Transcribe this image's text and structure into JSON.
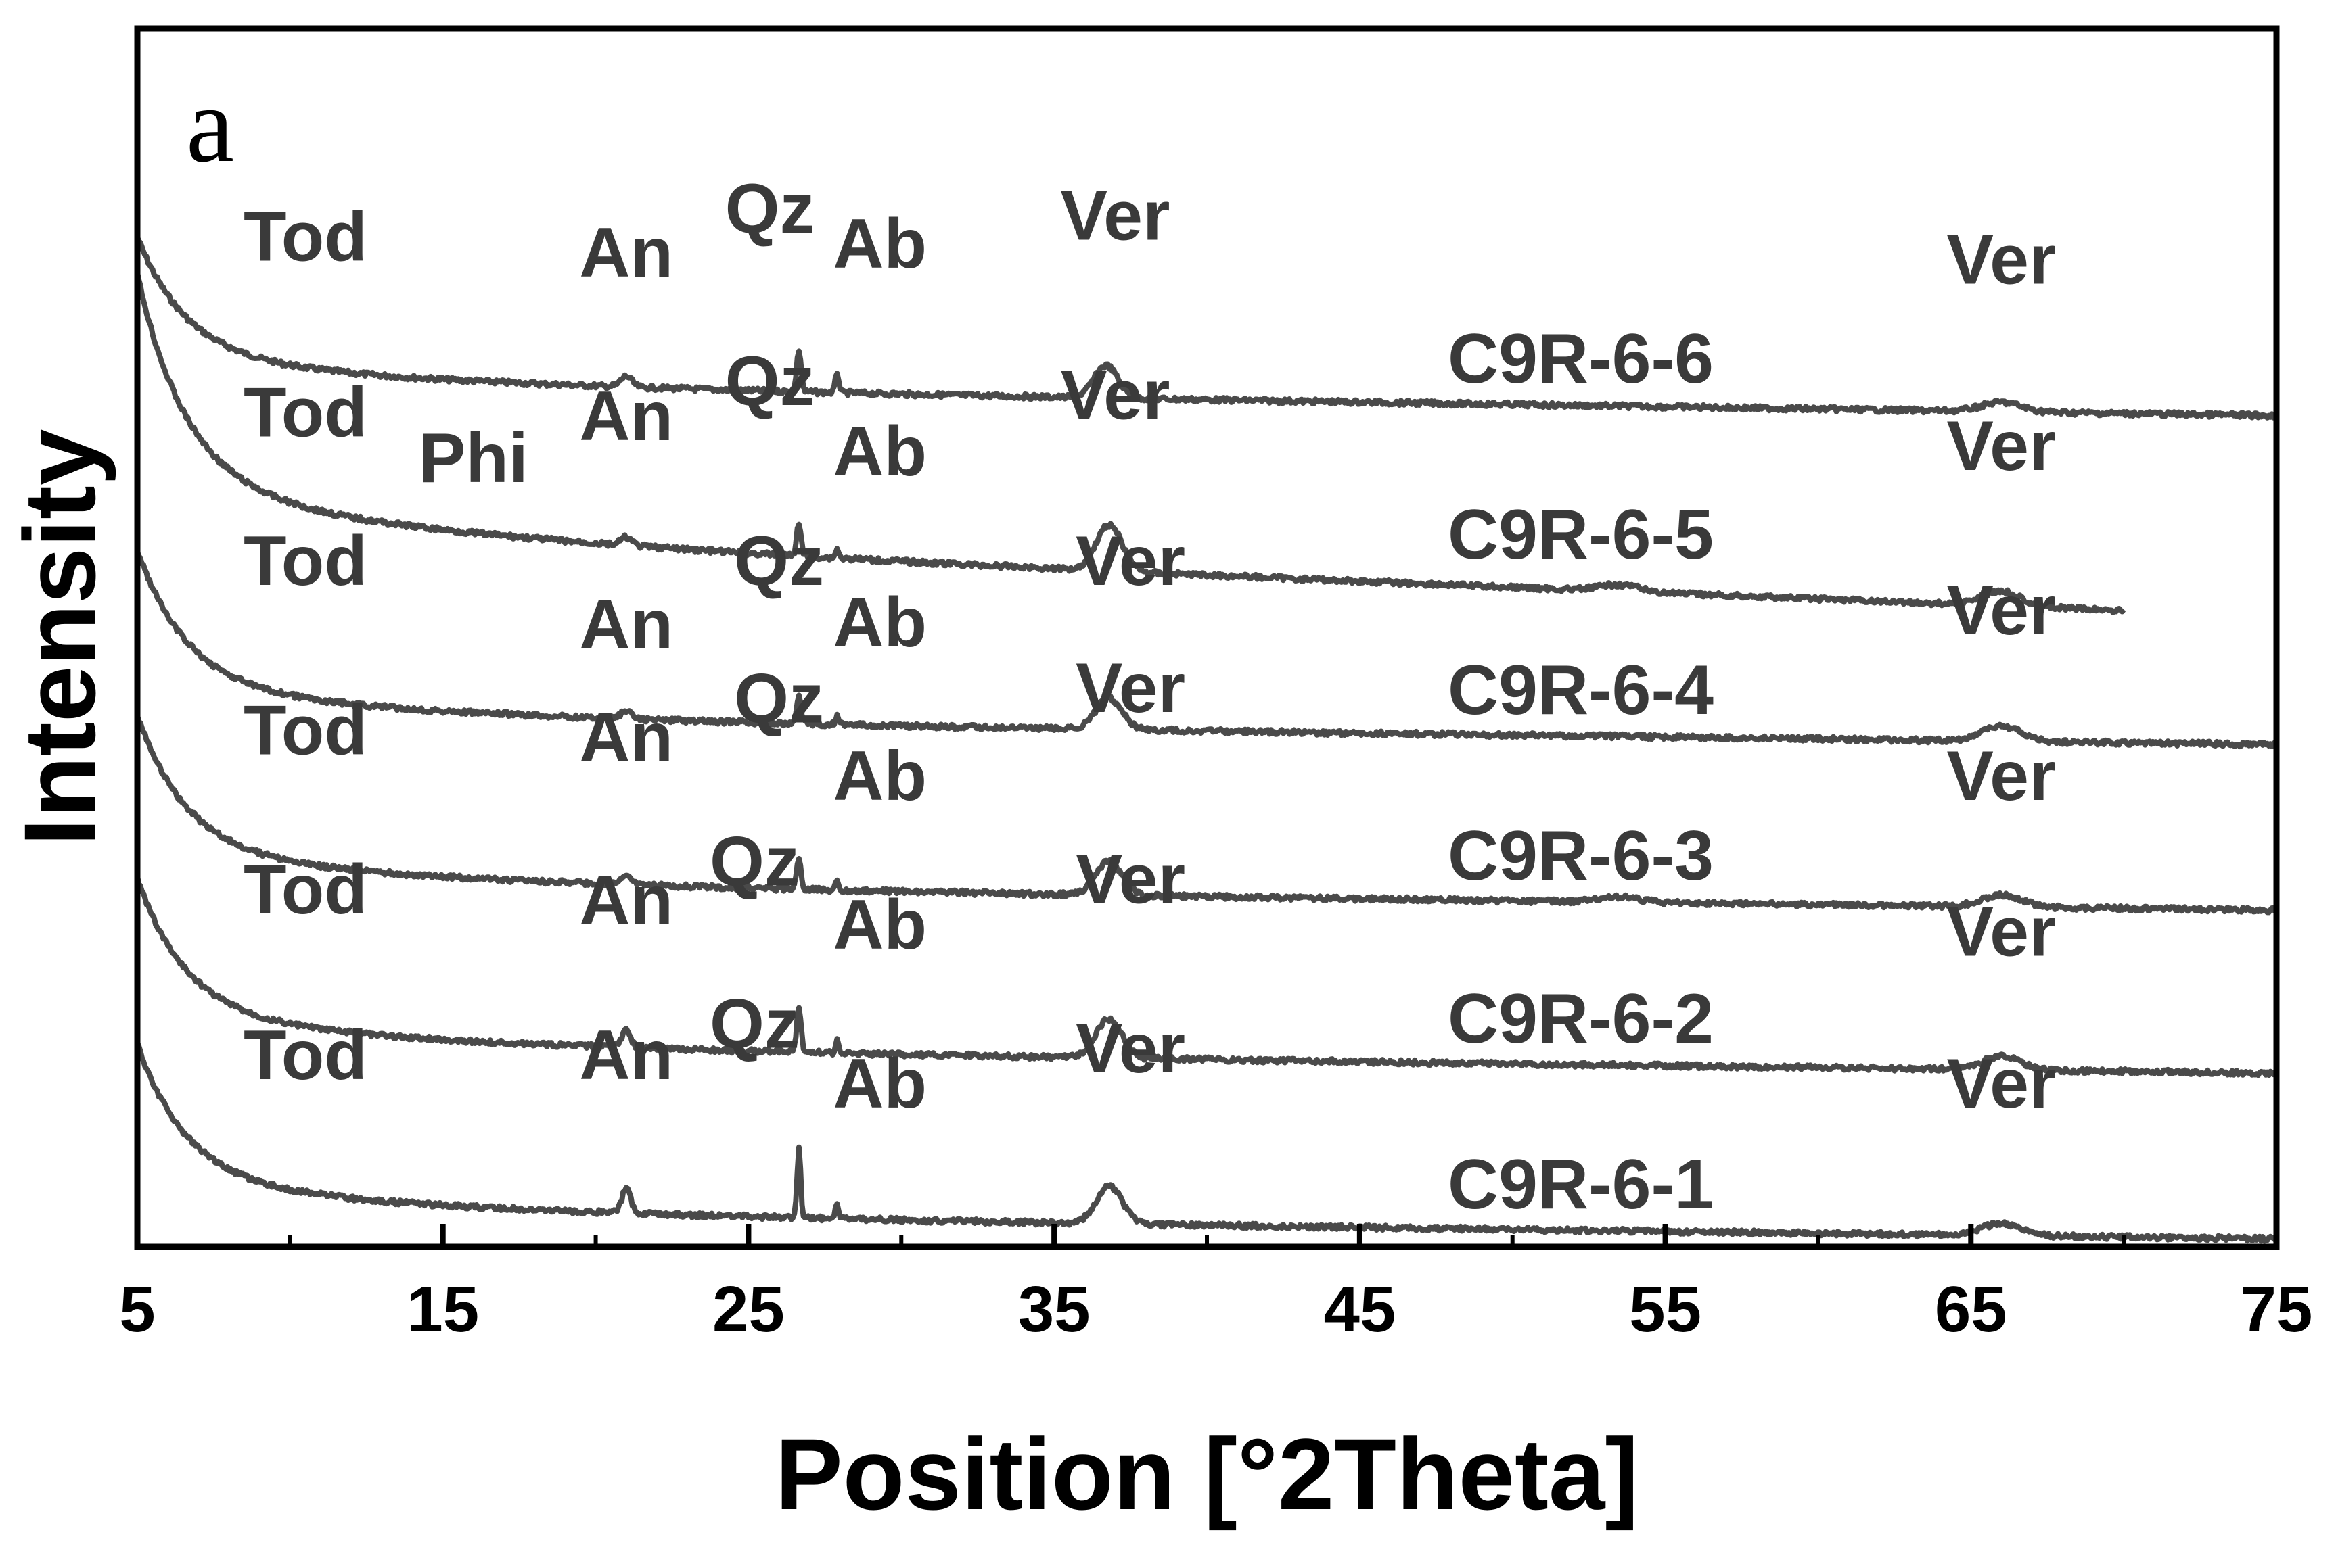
{
  "chart_data": {
    "type": "line",
    "panel_label": "a",
    "xlabel": "Position [°2Theta]",
    "ylabel": "Intensity",
    "xlim": [
      5,
      75
    ],
    "x_ticks": [
      "5",
      "15",
      "25",
      "35",
      "45",
      "55",
      "65",
      "75"
    ],
    "colors": {
      "trace": "#4a4a4a",
      "axis": "#000000",
      "label": "#3a3a3a"
    },
    "peak_labels": [
      "Tod",
      "Phi",
      "An",
      "Qz",
      "Ab",
      "Ver"
    ],
    "series": [
      {
        "name": "C9R-6-6",
        "x_range": [
          5,
          75
        ],
        "labels": [
          {
            "text": "Tod",
            "x": 10.5,
            "y": 0.64
          },
          {
            "text": "An",
            "x": 21.0,
            "y": 0.55
          },
          {
            "text": "Qz",
            "x": 25.7,
            "y": 0.8
          },
          {
            "text": "Ab",
            "x": 29.3,
            "y": 0.6
          },
          {
            "text": "Ver",
            "x": 37.0,
            "y": 0.76
          },
          {
            "text": "Ver",
            "x": 66.0,
            "y": 0.51
          }
        ]
      },
      {
        "name": "C9R-6-5",
        "x_range": [
          5,
          70
        ],
        "labels": [
          {
            "text": "Tod",
            "x": 10.5,
            "y": 0.64
          },
          {
            "text": "Phi",
            "x": 16.0,
            "y": 0.38
          },
          {
            "text": "An",
            "x": 21.0,
            "y": 0.62
          },
          {
            "text": "Qz",
            "x": 25.7,
            "y": 0.82
          },
          {
            "text": "Ab",
            "x": 29.3,
            "y": 0.42
          },
          {
            "text": "Ver",
            "x": 37.0,
            "y": 0.74
          },
          {
            "text": "Ver",
            "x": 66.0,
            "y": 0.45
          }
        ]
      },
      {
        "name": "C9R-6-4",
        "x_range": [
          5,
          75
        ],
        "labels": [
          {
            "text": "Tod",
            "x": 10.5,
            "y": 0.68
          },
          {
            "text": "An",
            "x": 21.0,
            "y": 0.32
          },
          {
            "text": "Qz",
            "x": 26.0,
            "y": 0.68
          },
          {
            "text": "Ab",
            "x": 29.3,
            "y": 0.33
          },
          {
            "text": "Ver",
            "x": 37.5,
            "y": 0.68
          },
          {
            "text": "Ver",
            "x": 66.0,
            "y": 0.4
          }
        ]
      },
      {
        "name": "C9R-6-3",
        "x_range": [
          5,
          75
        ],
        "labels": [
          {
            "text": "Tod",
            "x": 10.5,
            "y": 0.66
          },
          {
            "text": "An",
            "x": 21.0,
            "y": 0.62
          },
          {
            "text": "Qz",
            "x": 26.0,
            "y": 0.84
          },
          {
            "text": "Ab",
            "x": 29.3,
            "y": 0.4
          },
          {
            "text": "Ver",
            "x": 37.5,
            "y": 0.9
          },
          {
            "text": "Ver",
            "x": 66.0,
            "y": 0.4
          }
        ]
      },
      {
        "name": "C9R-6-2",
        "x_range": [
          5,
          75
        ],
        "labels": [
          {
            "text": "Tod",
            "x": 10.5,
            "y": 0.68
          },
          {
            "text": "An",
            "x": 21.0,
            "y": 0.62
          },
          {
            "text": "Qz",
            "x": 25.2,
            "y": 0.84
          },
          {
            "text": "Ab",
            "x": 29.3,
            "y": 0.48
          },
          {
            "text": "Ver",
            "x": 37.5,
            "y": 0.74
          },
          {
            "text": "Ver",
            "x": 66.0,
            "y": 0.44
          }
        ]
      },
      {
        "name": "C9R-6-1",
        "x_range": [
          5,
          75
        ],
        "labels": [
          {
            "text": "Tod",
            "x": 10.5,
            "y": 0.68
          },
          {
            "text": "An",
            "x": 21.0,
            "y": 0.68
          },
          {
            "text": "Qz",
            "x": 25.2,
            "y": 0.86
          },
          {
            "text": "Ab",
            "x": 29.3,
            "y": 0.52
          },
          {
            "text": "Ver",
            "x": 37.5,
            "y": 0.72
          },
          {
            "text": "Ver",
            "x": 66.0,
            "y": 0.52
          }
        ]
      }
    ]
  }
}
